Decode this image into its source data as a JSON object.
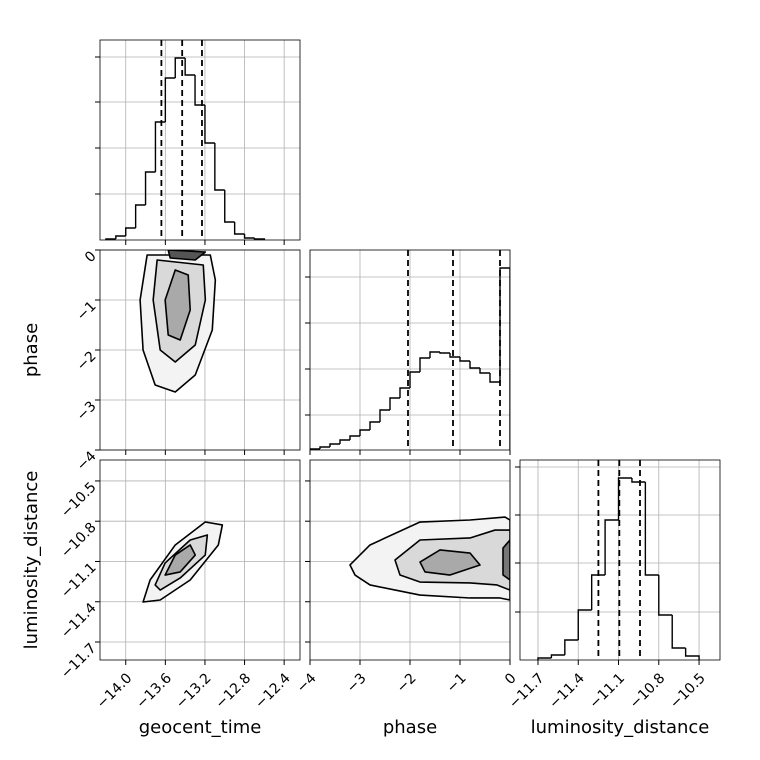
{
  "chart_data": [
    {
      "type": "histogram",
      "color": "#000000",
      "grid": true,
      "bins": [
        -14.2,
        -14.1,
        -14.0,
        -13.9,
        -13.8,
        -13.7,
        -13.6,
        -13.5,
        -13.4,
        -13.3,
        -13.2,
        -13.1,
        -13.0,
        -12.9,
        -12.8,
        -12.7,
        -12.6
      ],
      "values": [
        1,
        4,
        12,
        35,
        68,
        118,
        162,
        182,
        165,
        135,
        97,
        50,
        18,
        6,
        2,
        1
      ],
      "quantiles": [
        -13.64,
        -13.43,
        -13.23
      ],
      "xlim": [
        -14.26,
        -12.24
      ],
      "xticks": [
        -14.0,
        -13.6,
        -13.2,
        -12.8,
        -12.4
      ],
      "ylim": [
        0,
        200
      ],
      "yticks": [
        46,
        92,
        138,
        183
      ]
    },
    {
      "type": "contour",
      "grid": true,
      "color": "#000000",
      "fills": [
        "#f3f3f3",
        "#d9d9d9",
        "#a9a9a9",
        "#555555"
      ],
      "xlim": [
        -14.26,
        -12.24
      ],
      "xticks": [
        -14.0,
        -13.6,
        -13.2,
        -12.8,
        -12.4
      ],
      "ylim": [
        -4,
        0
      ],
      "ylabel": "phase",
      "yticks": [
        0,
        {
          "value": -1,
          "label": "−1"
        },
        {
          "value": -2,
          "label": "−2"
        },
        {
          "value": -3,
          "label": "−3"
        },
        {
          "value": -4,
          "label": "−4"
        }
      ],
      "contours": [
        {
          "level": 0,
          "x": [
            -13.784,
            -13.855,
            -13.825,
            -13.703,
            -13.5,
            -13.298,
            -13.126,
            -13.095,
            -13.146
          ],
          "y": [
            -0.1,
            -1.0,
            -2.0,
            -2.7,
            -2.84,
            -2.5,
            -1.6,
            -0.6,
            -0.1
          ]
        },
        {
          "level": 1,
          "x": [
            -13.683,
            -13.723,
            -13.652,
            -13.5,
            -13.298,
            -13.196,
            -13.217
          ],
          "y": [
            -0.2,
            -1.0,
            -2.0,
            -2.24,
            -1.9,
            -1.0,
            -0.3
          ]
        },
        {
          "level": 2,
          "x": [
            -13.5,
            -13.602,
            -13.571,
            -13.45,
            -13.349,
            -13.369
          ],
          "y": [
            -0.4,
            -1.0,
            -1.7,
            -1.8,
            -1.2,
            -0.5
          ]
        },
        {
          "level": 3,
          "x": [
            -13.571,
            -13.551,
            -13.298,
            -13.196
          ],
          "y": [
            0,
            -0.16,
            -0.2,
            -0.04
          ]
        }
      ]
    },
    {
      "type": "histogram",
      "color": "#000000",
      "grid": true,
      "bins": [
        -4.0,
        -3.8,
        -3.6,
        -3.4,
        -3.2,
        -3.0,
        -2.8,
        -2.6,
        -2.4,
        -2.2,
        -2.0,
        -1.8,
        -1.6,
        -1.4,
        -1.2,
        -1.0,
        -0.8,
        -0.6,
        -0.4,
        -0.2,
        0
      ],
      "values": [
        1,
        3,
        6,
        10,
        14,
        20,
        28,
        40,
        52,
        62,
        78,
        92,
        98,
        97,
        93,
        89,
        82,
        77,
        68,
        182
      ],
      "quantiles": [
        -2.04,
        -1.14,
        -0.2
      ],
      "xlim": [
        -4,
        0
      ],
      "xticks": [
        -4,
        -3,
        -2,
        -1,
        0
      ],
      "ylim": [
        0,
        200
      ],
      "yticks": [
        35,
        81,
        127,
        173
      ]
    },
    {
      "type": "contour",
      "grid": true,
      "color": "#000000",
      "fills": [
        "#f3f3f3",
        "#d9d9d9",
        "#a9a9a9"
      ],
      "xlim": [
        -14.26,
        -12.24
      ],
      "xlabel": "geocent_time",
      "xticks": [
        {
          "value": -14.0,
          "label": "−14.0"
        },
        {
          "value": -13.6,
          "label": "−13.6"
        },
        {
          "value": -13.2,
          "label": "−13.2"
        },
        {
          "value": -12.8,
          "label": "−12.8"
        },
        {
          "value": -12.4,
          "label": "−12.4"
        }
      ],
      "ylim": [
        -11.834,
        -10.344
      ],
      "ylabel": "luminosity_distance",
      "yticks": [
        {
          "value": -10.5,
          "label": "−10.5"
        },
        {
          "value": -10.8,
          "label": "−10.8"
        },
        {
          "value": -11.1,
          "label": "−11.1"
        },
        {
          "value": -11.4,
          "label": "−11.4"
        },
        {
          "value": -11.7,
          "label": "−11.7"
        }
      ],
      "contours": [
        {
          "level": 0,
          "x": [
            -13.825,
            -13.754,
            -13.5,
            -13.197,
            -13.024,
            -13.065,
            -13.349,
            -13.652
          ],
          "y": [
            -11.402,
            -11.238,
            -10.977,
            -10.806,
            -10.828,
            -10.977,
            -11.238,
            -11.387
          ]
        },
        {
          "level": 1,
          "x": [
            -13.703,
            -13.602,
            -13.349,
            -13.176,
            -13.197,
            -13.45,
            -13.652
          ],
          "y": [
            -11.275,
            -11.111,
            -10.94,
            -10.903,
            -11.052,
            -11.223,
            -11.313
          ]
        },
        {
          "level": 2,
          "x": [
            -13.602,
            -13.5,
            -13.349,
            -13.298,
            -13.45
          ],
          "y": [
            -11.201,
            -11.052,
            -10.977,
            -11.052,
            -11.178
          ]
        }
      ]
    },
    {
      "type": "contour",
      "grid": true,
      "color": "#000000",
      "fills": [
        "#f3f3f3",
        "#d9d9d9",
        "#a9a9a9",
        "#777777"
      ],
      "xlim": [
        -4,
        0
      ],
      "xlabel": "phase",
      "xticks": [
        {
          "value": -4,
          "label": "−4"
        },
        {
          "value": -3,
          "label": "−3"
        },
        {
          "value": -2,
          "label": "−2"
        },
        {
          "value": -1,
          "label": "−1"
        },
        0
      ],
      "ylim": [
        -11.834,
        -10.344
      ],
      "yticks": [
        -10.5,
        -10.8,
        -11.1,
        -11.4,
        -11.7
      ],
      "contours": [
        {
          "level": 0,
          "x": [
            -3.2,
            -2.8,
            -1.8,
            -0.8,
            -0.1,
            0,
            0,
            -0.2,
            -0.8,
            -1.8,
            -2.8,
            -3.1
          ],
          "y": [
            -11.126,
            -10.977,
            -10.806,
            -10.791,
            -10.769,
            -10.791,
            -11.387,
            -11.372,
            -11.372,
            -11.35,
            -11.275,
            -11.201
          ]
        },
        {
          "level": 1,
          "x": [
            -2.3,
            -1.8,
            -0.8,
            -0.3,
            0,
            0,
            -0.26,
            -0.8,
            -1.8,
            -2.2
          ],
          "y": [
            -11.089,
            -10.94,
            -10.925,
            -10.866,
            -10.866,
            -11.313,
            -11.275,
            -11.26,
            -11.253,
            -11.201
          ]
        },
        {
          "level": 2,
          "x": [
            -1.8,
            -1.4,
            -0.8,
            -0.6,
            -1.2,
            -1.7
          ],
          "y": [
            -11.104,
            -11.014,
            -11.037,
            -11.126,
            -11.201,
            -11.178
          ]
        },
        {
          "level": 3,
          "x": [
            -0.14,
            0,
            0,
            -0.14
          ],
          "y": [
            -11.0,
            -10.94,
            -11.238,
            -11.201
          ]
        }
      ]
    },
    {
      "type": "histogram",
      "color": "#000000",
      "grid": true,
      "xlabel": "luminosity_distance",
      "bins": [
        -11.7,
        -11.6,
        -11.5,
        -11.4,
        -11.3,
        -11.2,
        -11.1,
        -11.0,
        -10.9,
        -10.8,
        -10.7,
        -10.6,
        -10.5
      ],
      "values": [
        2,
        5,
        20,
        50,
        85,
        140,
        182,
        178,
        85,
        45,
        12,
        4
      ],
      "quantiles": [
        -11.25,
        -11.094,
        -10.94
      ],
      "xlim": [
        -11.834,
        -10.344
      ],
      "xticks": [
        {
          "value": -11.7,
          "label": "−11.7"
        },
        {
          "value": -11.4,
          "label": "−11.4"
        },
        {
          "value": -11.1,
          "label": "−11.1"
        },
        {
          "value": -10.8,
          "label": "−10.8"
        },
        {
          "value": -10.5,
          "label": "−10.5"
        }
      ],
      "ylim": [
        0,
        200
      ],
      "yticks": [
        48,
        97,
        145,
        193
      ]
    }
  ]
}
